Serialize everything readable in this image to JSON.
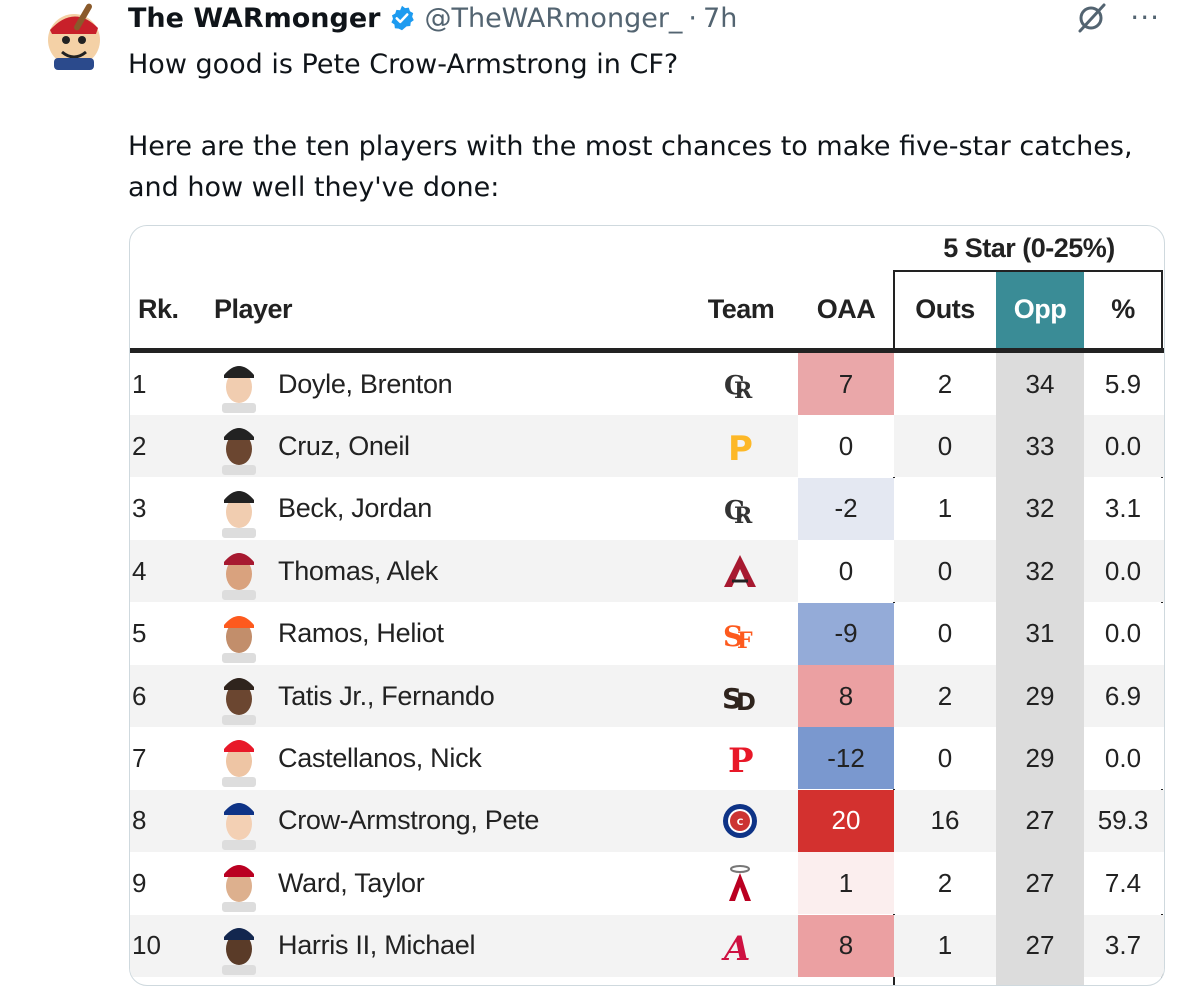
{
  "tweet": {
    "author_name": "The WARmonger",
    "handle": "@TheWARmonger_",
    "separator": "·",
    "time": "7h",
    "more": "···",
    "text_line1": "How good is Pete Crow-Armstrong in CF?",
    "text_line2": "Here are the ten players with the most chances to make five-star catches, and how well they've done:"
  },
  "colors": {
    "accent_opp": "#3a8c96",
    "opp_column": "#dcdcdc",
    "verified_blue": "#1d9bf0"
  },
  "table": {
    "group_header": "5 Star (0-25%)",
    "columns": {
      "rank": "Rk.",
      "player": "Player",
      "team": "Team",
      "oaa": "OAA",
      "outs": "Outs",
      "opp": "Opp",
      "pct": "%"
    },
    "rows": [
      {
        "rank": "1",
        "player": "Doyle, Brenton",
        "team_icon": "rockies-logo-icon",
        "oaa": "7",
        "oaa_color": "#eaa7a9",
        "outs": "2",
        "opp": "34",
        "pct": "5.9"
      },
      {
        "rank": "2",
        "player": "Cruz, Oneil",
        "team_icon": "pirates-logo-icon",
        "oaa": "0",
        "oaa_color": "#ffffff",
        "outs": "0",
        "opp": "33",
        "pct": "0.0"
      },
      {
        "rank": "3",
        "player": "Beck, Jordan",
        "team_icon": "rockies-logo-icon",
        "oaa": "-2",
        "oaa_color": "#e4e8f2",
        "outs": "1",
        "opp": "32",
        "pct": "3.1"
      },
      {
        "rank": "4",
        "player": "Thomas, Alek",
        "team_icon": "diamondbacks-logo-icon",
        "oaa": "0",
        "oaa_color": "#ffffff",
        "outs": "0",
        "opp": "32",
        "pct": "0.0"
      },
      {
        "rank": "5",
        "player": "Ramos, Heliot",
        "team_icon": "giants-logo-icon",
        "oaa": "-9",
        "oaa_color": "#94abd8",
        "outs": "0",
        "opp": "31",
        "pct": "0.0"
      },
      {
        "rank": "6",
        "player": "Tatis Jr., Fernando",
        "team_icon": "padres-logo-icon",
        "oaa": "8",
        "oaa_color": "#eba0a2",
        "outs": "2",
        "opp": "29",
        "pct": "6.9"
      },
      {
        "rank": "7",
        "player": "Castellanos, Nick",
        "team_icon": "phillies-logo-icon",
        "oaa": "-12",
        "oaa_color": "#7a98cf",
        "outs": "0",
        "opp": "29",
        "pct": "0.0"
      },
      {
        "rank": "8",
        "player": "Crow-Armstrong, Pete",
        "team_icon": "cubs-logo-icon",
        "oaa": "20",
        "oaa_color": "#d3312f",
        "outs": "16",
        "opp": "27",
        "pct": "59.3"
      },
      {
        "rank": "9",
        "player": "Ward, Taylor",
        "team_icon": "angels-logo-icon",
        "oaa": "1",
        "oaa_color": "#fbeeee",
        "outs": "2",
        "opp": "27",
        "pct": "7.4"
      },
      {
        "rank": "10",
        "player": "Harris II, Michael",
        "team_icon": "braves-logo-icon",
        "oaa": "8",
        "oaa_color": "#eba0a2",
        "outs": "1",
        "opp": "27",
        "pct": "3.7"
      }
    ]
  }
}
